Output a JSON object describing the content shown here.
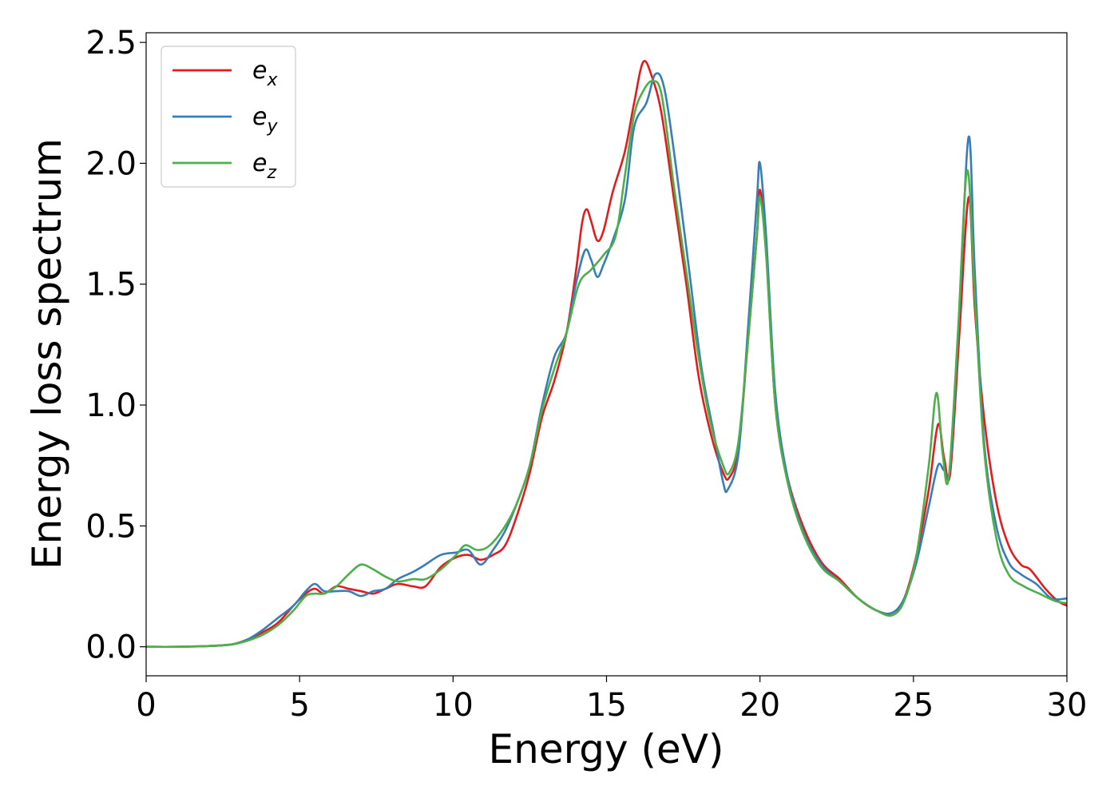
{
  "chart_data": {
    "type": "line",
    "title": "",
    "xlabel": "Energy (eV)",
    "ylabel": "Energy loss spectrum",
    "xlim": [
      0,
      30
    ],
    "ylim": [
      -0.12,
      2.54
    ],
    "xticks": [
      0,
      5,
      10,
      15,
      20,
      25,
      30
    ],
    "xtick_labels": [
      "0",
      "5",
      "10",
      "15",
      "20",
      "25",
      "30"
    ],
    "yticks": [
      0.0,
      0.5,
      1.0,
      1.5,
      2.0,
      2.5
    ],
    "ytick_labels": [
      "0.0",
      "0.5",
      "1.0",
      "1.5",
      "2.0",
      "2.5"
    ],
    "grid": false,
    "legend_position": "top-left",
    "series": [
      {
        "name": "e_x",
        "legend_main": "e",
        "legend_sub": "x",
        "color": "#e41a1c",
        "points": [
          [
            0,
            0
          ],
          [
            1,
            0
          ],
          [
            2,
            0.003
          ],
          [
            2.8,
            0.01
          ],
          [
            3.3,
            0.03
          ],
          [
            3.8,
            0.06
          ],
          [
            4.3,
            0.1
          ],
          [
            4.8,
            0.17
          ],
          [
            5.2,
            0.22
          ],
          [
            5.5,
            0.24
          ],
          [
            5.8,
            0.22
          ],
          [
            6.2,
            0.25
          ],
          [
            6.6,
            0.24
          ],
          [
            7,
            0.23
          ],
          [
            7.4,
            0.22
          ],
          [
            7.8,
            0.24
          ],
          [
            8.2,
            0.26
          ],
          [
            8.7,
            0.25
          ],
          [
            9.1,
            0.25
          ],
          [
            9.6,
            0.33
          ],
          [
            10.1,
            0.37
          ],
          [
            10.5,
            0.38
          ],
          [
            10.9,
            0.36
          ],
          [
            11.3,
            0.38
          ],
          [
            11.7,
            0.42
          ],
          [
            12.1,
            0.55
          ],
          [
            12.5,
            0.72
          ],
          [
            12.9,
            0.95
          ],
          [
            13.3,
            1.1
          ],
          [
            13.7,
            1.3
          ],
          [
            14.0,
            1.55
          ],
          [
            14.2,
            1.75
          ],
          [
            14.35,
            1.81
          ],
          [
            14.5,
            1.76
          ],
          [
            14.7,
            1.68
          ],
          [
            14.9,
            1.72
          ],
          [
            15.2,
            1.88
          ],
          [
            15.6,
            2.05
          ],
          [
            15.9,
            2.25
          ],
          [
            16.2,
            2.42
          ],
          [
            16.5,
            2.35
          ],
          [
            16.8,
            2.2
          ],
          [
            17.2,
            1.85
          ],
          [
            17.6,
            1.5
          ],
          [
            18.0,
            1.12
          ],
          [
            18.4,
            0.88
          ],
          [
            18.8,
            0.72
          ],
          [
            19.0,
            0.7
          ],
          [
            19.3,
            0.82
          ],
          [
            19.6,
            1.25
          ],
          [
            19.9,
            1.7
          ],
          [
            20.0,
            1.89
          ],
          [
            20.2,
            1.65
          ],
          [
            20.5,
            1.0
          ],
          [
            20.9,
            0.7
          ],
          [
            21.4,
            0.5
          ],
          [
            22.0,
            0.35
          ],
          [
            22.6,
            0.28
          ],
          [
            23.2,
            0.2
          ],
          [
            23.8,
            0.15
          ],
          [
            24.3,
            0.14
          ],
          [
            24.7,
            0.2
          ],
          [
            25.1,
            0.38
          ],
          [
            25.5,
            0.65
          ],
          [
            25.8,
            0.92
          ],
          [
            26.0,
            0.78
          ],
          [
            26.2,
            0.72
          ],
          [
            26.5,
            1.3
          ],
          [
            26.8,
            1.86
          ],
          [
            27.0,
            1.4
          ],
          [
            27.3,
            0.95
          ],
          [
            27.7,
            0.6
          ],
          [
            28.1,
            0.42
          ],
          [
            28.5,
            0.34
          ],
          [
            28.8,
            0.32
          ],
          [
            29.3,
            0.24
          ],
          [
            29.7,
            0.19
          ],
          [
            30,
            0.17
          ]
        ]
      },
      {
        "name": "e_y",
        "legend_main": "e",
        "legend_sub": "y",
        "color": "#377eb8",
        "points": [
          [
            0,
            0
          ],
          [
            1,
            0
          ],
          [
            2,
            0.003
          ],
          [
            2.8,
            0.01
          ],
          [
            3.3,
            0.03
          ],
          [
            3.8,
            0.07
          ],
          [
            4.3,
            0.12
          ],
          [
            4.8,
            0.17
          ],
          [
            5.2,
            0.23
          ],
          [
            5.5,
            0.26
          ],
          [
            5.8,
            0.23
          ],
          [
            6.2,
            0.23
          ],
          [
            6.6,
            0.23
          ],
          [
            7,
            0.21
          ],
          [
            7.4,
            0.23
          ],
          [
            7.8,
            0.24
          ],
          [
            8.2,
            0.28
          ],
          [
            8.7,
            0.31
          ],
          [
            9.1,
            0.34
          ],
          [
            9.6,
            0.38
          ],
          [
            10.1,
            0.39
          ],
          [
            10.5,
            0.4
          ],
          [
            10.9,
            0.34
          ],
          [
            11.3,
            0.4
          ],
          [
            11.7,
            0.48
          ],
          [
            12.1,
            0.6
          ],
          [
            12.5,
            0.75
          ],
          [
            12.9,
            1.0
          ],
          [
            13.3,
            1.2
          ],
          [
            13.7,
            1.3
          ],
          [
            14.0,
            1.5
          ],
          [
            14.3,
            1.64
          ],
          [
            14.5,
            1.6
          ],
          [
            14.7,
            1.53
          ],
          [
            14.9,
            1.58
          ],
          [
            15.2,
            1.68
          ],
          [
            15.6,
            1.85
          ],
          [
            15.9,
            2.15
          ],
          [
            16.3,
            2.25
          ],
          [
            16.6,
            2.37
          ],
          [
            16.9,
            2.3
          ],
          [
            17.3,
            1.95
          ],
          [
            17.7,
            1.55
          ],
          [
            18.1,
            1.15
          ],
          [
            18.5,
            0.88
          ],
          [
            18.8,
            0.68
          ],
          [
            18.95,
            0.65
          ],
          [
            19.3,
            0.8
          ],
          [
            19.6,
            1.3
          ],
          [
            19.9,
            1.85
          ],
          [
            20.0,
            2.0
          ],
          [
            20.2,
            1.7
          ],
          [
            20.5,
            1.05
          ],
          [
            20.9,
            0.7
          ],
          [
            21.4,
            0.48
          ],
          [
            22.0,
            0.34
          ],
          [
            22.6,
            0.27
          ],
          [
            23.2,
            0.2
          ],
          [
            23.8,
            0.15
          ],
          [
            24.3,
            0.14
          ],
          [
            24.7,
            0.2
          ],
          [
            25.1,
            0.35
          ],
          [
            25.5,
            0.58
          ],
          [
            25.8,
            0.75
          ],
          [
            26.0,
            0.73
          ],
          [
            26.2,
            0.75
          ],
          [
            26.5,
            1.4
          ],
          [
            26.8,
            2.11
          ],
          [
            27.0,
            1.55
          ],
          [
            27.3,
            0.85
          ],
          [
            27.7,
            0.5
          ],
          [
            28.1,
            0.35
          ],
          [
            28.5,
            0.3
          ],
          [
            29.0,
            0.26
          ],
          [
            29.5,
            0.2
          ],
          [
            30,
            0.2
          ]
        ]
      },
      {
        "name": "e_z",
        "legend_main": "e",
        "legend_sub": "z",
        "color": "#4daf4a",
        "points": [
          [
            0,
            0
          ],
          [
            1,
            0
          ],
          [
            2,
            0.003
          ],
          [
            2.8,
            0.01
          ],
          [
            3.3,
            0.025
          ],
          [
            3.8,
            0.05
          ],
          [
            4.3,
            0.09
          ],
          [
            4.8,
            0.15
          ],
          [
            5.2,
            0.21
          ],
          [
            5.5,
            0.22
          ],
          [
            5.8,
            0.22
          ],
          [
            6.2,
            0.25
          ],
          [
            6.6,
            0.3
          ],
          [
            7,
            0.34
          ],
          [
            7.4,
            0.32
          ],
          [
            7.8,
            0.29
          ],
          [
            8.2,
            0.27
          ],
          [
            8.7,
            0.28
          ],
          [
            9.1,
            0.28
          ],
          [
            9.6,
            0.32
          ],
          [
            10.1,
            0.38
          ],
          [
            10.4,
            0.42
          ],
          [
            10.8,
            0.4
          ],
          [
            11.2,
            0.42
          ],
          [
            11.7,
            0.5
          ],
          [
            12.1,
            0.6
          ],
          [
            12.5,
            0.75
          ],
          [
            12.9,
            0.98
          ],
          [
            13.3,
            1.15
          ],
          [
            13.7,
            1.3
          ],
          [
            14.1,
            1.5
          ],
          [
            14.5,
            1.56
          ],
          [
            14.9,
            1.62
          ],
          [
            15.3,
            1.7
          ],
          [
            15.6,
            1.95
          ],
          [
            15.9,
            2.2
          ],
          [
            16.2,
            2.3
          ],
          [
            16.5,
            2.34
          ],
          [
            16.8,
            2.28
          ],
          [
            17.2,
            1.9
          ],
          [
            17.6,
            1.55
          ],
          [
            18.0,
            1.2
          ],
          [
            18.4,
            0.92
          ],
          [
            18.8,
            0.75
          ],
          [
            19.0,
            0.72
          ],
          [
            19.3,
            0.85
          ],
          [
            19.6,
            1.25
          ],
          [
            19.9,
            1.7
          ],
          [
            20.0,
            1.86
          ],
          [
            20.2,
            1.62
          ],
          [
            20.5,
            1.0
          ],
          [
            20.9,
            0.68
          ],
          [
            21.4,
            0.47
          ],
          [
            22.0,
            0.33
          ],
          [
            22.6,
            0.27
          ],
          [
            23.2,
            0.2
          ],
          [
            23.8,
            0.15
          ],
          [
            24.3,
            0.13
          ],
          [
            24.7,
            0.19
          ],
          [
            25.1,
            0.38
          ],
          [
            25.5,
            0.75
          ],
          [
            25.75,
            1.05
          ],
          [
            25.95,
            0.8
          ],
          [
            26.15,
            0.7
          ],
          [
            26.45,
            1.3
          ],
          [
            26.75,
            1.97
          ],
          [
            27.0,
            1.45
          ],
          [
            27.3,
            0.82
          ],
          [
            27.7,
            0.45
          ],
          [
            28.1,
            0.3
          ],
          [
            28.6,
            0.25
          ],
          [
            29.1,
            0.22
          ],
          [
            29.6,
            0.19
          ],
          [
            30,
            0.18
          ]
        ]
      }
    ]
  }
}
